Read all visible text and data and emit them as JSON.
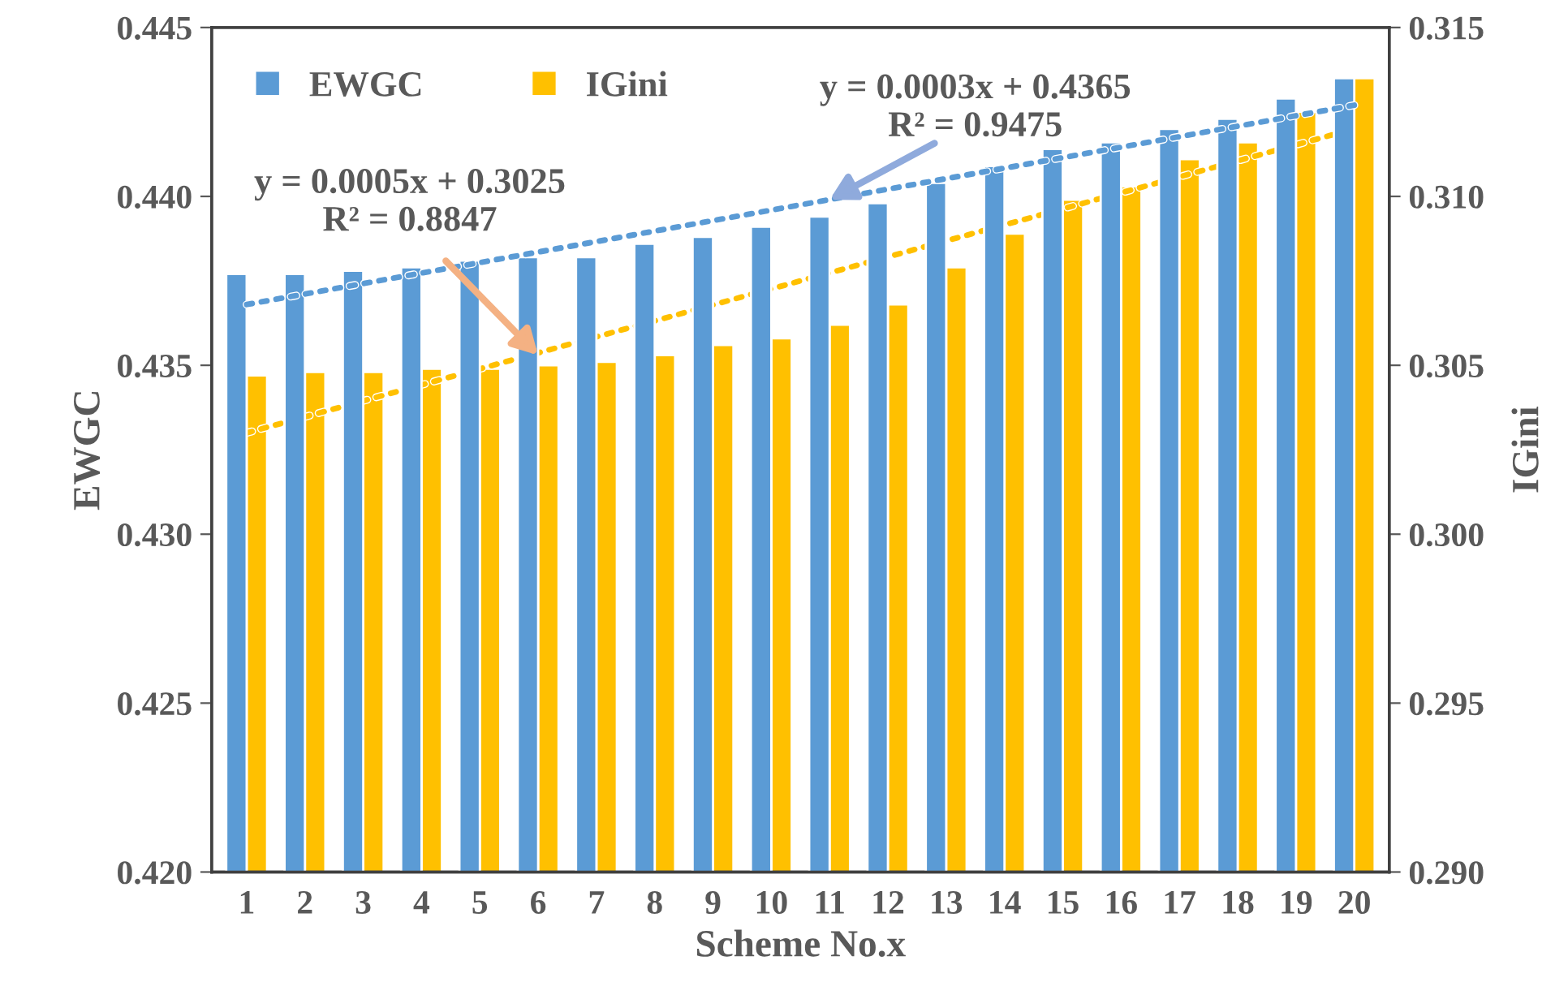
{
  "chart_data": {
    "type": "bar",
    "xlabel": "Scheme No.x",
    "ylabel": "EWGC",
    "y2label": "IGini",
    "categories": [
      "1",
      "2",
      "3",
      "4",
      "5",
      "6",
      "7",
      "8",
      "9",
      "10",
      "11",
      "12",
      "13",
      "14",
      "15",
      "16",
      "17",
      "18",
      "19",
      "20"
    ],
    "series": [
      {
        "name": "EWGC",
        "color": "#5b9bd5",
        "values": [
          0.4377,
          0.4377,
          0.4378,
          0.4379,
          0.4381,
          0.4382,
          0.4382,
          0.4386,
          0.4388,
          0.4391,
          0.4394,
          0.4398,
          0.4404,
          0.4409,
          0.4414,
          0.4416,
          0.442,
          0.4423,
          0.4429,
          0.4435
        ]
      },
      {
        "name": "IGini",
        "color": "#ffc000",
        "axis": "y2",
        "values": [
          0.3047,
          0.3048,
          0.3048,
          0.3049,
          0.3049,
          0.305,
          0.3051,
          0.3053,
          0.3056,
          0.3058,
          0.3062,
          0.3068,
          0.3079,
          0.3089,
          0.3099,
          0.3103,
          0.3111,
          0.3116,
          0.3125,
          0.3135
        ]
      },
      {
        "type": "line",
        "color": "#5b9bd5",
        "line_style": "dotted",
        "x": [
          "1",
          "20"
        ],
        "values": [
          0.4368,
          0.4427
        ]
      },
      {
        "type": "line",
        "color": "#ffc000",
        "line_style": "dotted",
        "axis": "y2",
        "x": [
          "1",
          "20"
        ],
        "values": [
          0.303,
          0.312
        ]
      }
    ],
    "ylim": [
      0.42,
      0.445
    ],
    "yticks": [
      {
        "value": 0.42,
        "label": "0.420"
      },
      {
        "value": 0.425,
        "label": "0.425"
      },
      {
        "value": 0.43,
        "label": "0.430"
      },
      {
        "value": 0.435,
        "label": "0.435"
      },
      {
        "value": 0.44,
        "label": "0.440"
      },
      {
        "value": 0.445,
        "label": "0.445"
      }
    ],
    "y2lim": [
      0.29,
      0.315
    ],
    "y2ticks": [
      {
        "value": 0.29,
        "label": "0.290"
      },
      {
        "value": 0.295,
        "label": "0.295"
      },
      {
        "value": 0.3,
        "label": "0.300"
      },
      {
        "value": 0.305,
        "label": "0.305"
      },
      {
        "value": 0.31,
        "label": "0.310"
      },
      {
        "value": 0.315,
        "label": "0.315"
      }
    ],
    "annotations": [
      {
        "text": "y = 0.0005x + 0.3025\nR² = 0.8847",
        "x": "6",
        "y": 0.4353
      },
      {
        "text": "y = 0.0003x + 0.4365\nR² = 0.9475",
        "x": "11",
        "y": 0.4399
      }
    ],
    "legend": "top left",
    "grid": false
  }
}
